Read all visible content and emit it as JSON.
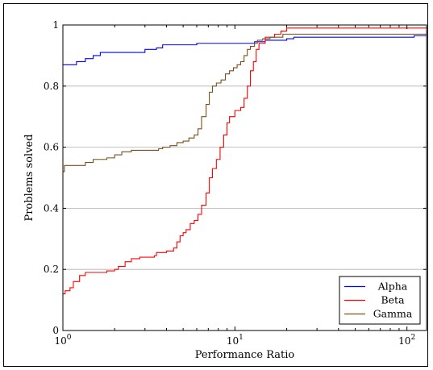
{
  "chart_data": {
    "type": "line",
    "title": "",
    "xlabel": "Performance Ratio",
    "ylabel": "Problems solved",
    "xscale": "log",
    "xlim": [
      1,
      130
    ],
    "ylim": [
      0,
      1
    ],
    "xticks": [
      {
        "value": 1,
        "base": "10",
        "exp": "0"
      },
      {
        "value": 10,
        "base": "10",
        "exp": "1"
      },
      {
        "value": 100,
        "base": "10",
        "exp": "2"
      }
    ],
    "yticks": [
      {
        "value": 0,
        "label": "0"
      },
      {
        "value": 0.2,
        "label": "0.2"
      },
      {
        "value": 0.4,
        "label": "0.4"
      },
      {
        "value": 0.6,
        "label": "0.6"
      },
      {
        "value": 0.8,
        "label": "0.8"
      },
      {
        "value": 1,
        "label": "1"
      }
    ],
    "grid": "horizontal",
    "legend_position": "bottom-right",
    "series": [
      {
        "name": "Alpha",
        "color": "#0000ff",
        "points": [
          [
            1,
            0.87
          ],
          [
            1.2,
            0.88
          ],
          [
            1.35,
            0.89
          ],
          [
            1.5,
            0.9
          ],
          [
            1.65,
            0.91
          ],
          [
            2,
            0.91
          ],
          [
            2.5,
            0.91
          ],
          [
            3,
            0.92
          ],
          [
            3.5,
            0.925
          ],
          [
            3.8,
            0.935
          ],
          [
            5,
            0.935
          ],
          [
            6,
            0.94
          ],
          [
            10,
            0.94
          ],
          [
            13,
            0.945
          ],
          [
            15,
            0.95
          ],
          [
            20,
            0.955
          ],
          [
            22,
            0.96
          ],
          [
            30,
            0.96
          ],
          [
            100,
            0.96
          ],
          [
            110,
            0.965
          ],
          [
            130,
            0.97
          ]
        ]
      },
      {
        "name": "Beta",
        "color": "#ff0000",
        "points": [
          [
            1,
            0.12
          ],
          [
            1.03,
            0.13
          ],
          [
            1.1,
            0.14
          ],
          [
            1.15,
            0.16
          ],
          [
            1.25,
            0.18
          ],
          [
            1.35,
            0.19
          ],
          [
            1.5,
            0.19
          ],
          [
            1.8,
            0.195
          ],
          [
            2,
            0.2
          ],
          [
            2.1,
            0.21
          ],
          [
            2.3,
            0.225
          ],
          [
            2.5,
            0.235
          ],
          [
            2.8,
            0.24
          ],
          [
            3.4,
            0.245
          ],
          [
            3.5,
            0.255
          ],
          [
            4,
            0.26
          ],
          [
            4.4,
            0.27
          ],
          [
            4.6,
            0.29
          ],
          [
            4.8,
            0.31
          ],
          [
            5,
            0.32
          ],
          [
            5.2,
            0.33
          ],
          [
            5.5,
            0.35
          ],
          [
            5.8,
            0.36
          ],
          [
            6.1,
            0.38
          ],
          [
            6.4,
            0.41
          ],
          [
            6.8,
            0.45
          ],
          [
            7.1,
            0.5
          ],
          [
            7.4,
            0.53
          ],
          [
            7.8,
            0.56
          ],
          [
            8.2,
            0.6
          ],
          [
            8.6,
            0.64
          ],
          [
            9,
            0.68
          ],
          [
            9.3,
            0.7
          ],
          [
            10,
            0.72
          ],
          [
            10.8,
            0.73
          ],
          [
            11.3,
            0.76
          ],
          [
            11.8,
            0.8
          ],
          [
            12.3,
            0.85
          ],
          [
            12.8,
            0.88
          ],
          [
            13.3,
            0.92
          ],
          [
            13.8,
            0.94
          ],
          [
            15,
            0.96
          ],
          [
            17,
            0.97
          ],
          [
            18.5,
            0.98
          ],
          [
            20,
            0.99
          ],
          [
            30,
            0.99
          ],
          [
            130,
            0.995
          ]
        ]
      },
      {
        "name": "Gamma",
        "color": "#7a4f1c",
        "points": [
          [
            1,
            0.52
          ],
          [
            1.02,
            0.54
          ],
          [
            1.2,
            0.54
          ],
          [
            1.35,
            0.55
          ],
          [
            1.5,
            0.56
          ],
          [
            1.8,
            0.565
          ],
          [
            2,
            0.575
          ],
          [
            2.2,
            0.585
          ],
          [
            2.5,
            0.59
          ],
          [
            3,
            0.59
          ],
          [
            3.6,
            0.595
          ],
          [
            3.8,
            0.6
          ],
          [
            4.2,
            0.605
          ],
          [
            4.6,
            0.615
          ],
          [
            5,
            0.62
          ],
          [
            5.4,
            0.63
          ],
          [
            5.8,
            0.64
          ],
          [
            6.1,
            0.66
          ],
          [
            6.4,
            0.7
          ],
          [
            6.8,
            0.74
          ],
          [
            7.1,
            0.78
          ],
          [
            7.4,
            0.8
          ],
          [
            7.8,
            0.81
          ],
          [
            8.3,
            0.82
          ],
          [
            8.8,
            0.84
          ],
          [
            9.3,
            0.85
          ],
          [
            9.8,
            0.86
          ],
          [
            10.3,
            0.87
          ],
          [
            10.8,
            0.88
          ],
          [
            11.3,
            0.9
          ],
          [
            11.8,
            0.92
          ],
          [
            12.3,
            0.93
          ],
          [
            13,
            0.94
          ],
          [
            13.5,
            0.95
          ],
          [
            14.5,
            0.955
          ],
          [
            16,
            0.96
          ],
          [
            19,
            0.97
          ],
          [
            25,
            0.97
          ],
          [
            130,
            0.98
          ]
        ]
      }
    ]
  }
}
